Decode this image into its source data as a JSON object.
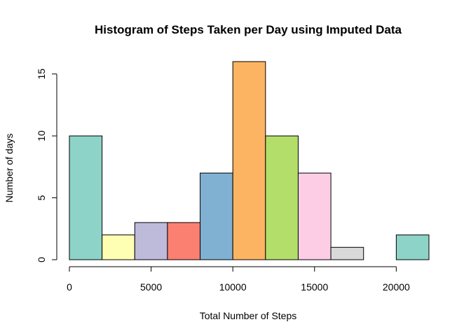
{
  "chart_data": {
    "type": "bar",
    "title": "Histogram of Steps Taken per Day using Imputed Data",
    "xlabel": "Total Number of Steps",
    "ylabel": "Number of days",
    "bins": [
      {
        "start": 0,
        "end": 2000,
        "count": 10,
        "color": "#8DD3C7"
      },
      {
        "start": 2000,
        "end": 4000,
        "count": 2,
        "color": "#FFFFB3"
      },
      {
        "start": 4000,
        "end": 6000,
        "count": 3,
        "color": "#BEBADA"
      },
      {
        "start": 6000,
        "end": 8000,
        "count": 3,
        "color": "#FB8072"
      },
      {
        "start": 8000,
        "end": 10000,
        "count": 7,
        "color": "#80B1D3"
      },
      {
        "start": 10000,
        "end": 12000,
        "count": 16,
        "color": "#FDB462"
      },
      {
        "start": 12000,
        "end": 14000,
        "count": 10,
        "color": "#B3DE69"
      },
      {
        "start": 14000,
        "end": 16000,
        "count": 7,
        "color": "#FCCDE5"
      },
      {
        "start": 16000,
        "end": 18000,
        "count": 1,
        "color": "#D9D9D9"
      },
      {
        "start": 18000,
        "end": 20000,
        "count": 0,
        "color": "#BC80BD"
      },
      {
        "start": 20000,
        "end": 22000,
        "count": 2,
        "color": "#8DD3C7"
      }
    ],
    "xlim": [
      0,
      22000
    ],
    "ylim": [
      0,
      16
    ],
    "x_ticks": [
      0,
      5000,
      10000,
      15000,
      20000
    ],
    "x_tick_labels": [
      "0",
      "5000",
      "10000",
      "15000",
      "20000"
    ],
    "y_ticks": [
      0,
      5,
      10,
      15
    ],
    "y_tick_labels": [
      "0",
      "5",
      "10",
      "15"
    ],
    "grid": false,
    "legend": "none"
  }
}
